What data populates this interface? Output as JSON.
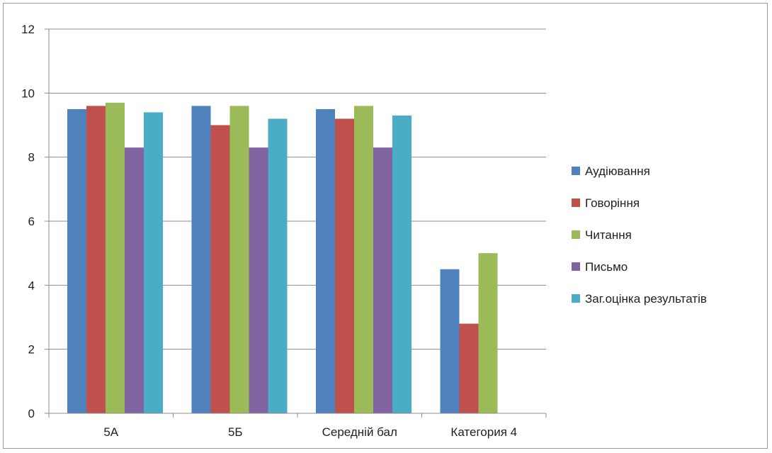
{
  "chart_data": {
    "type": "bar",
    "categories": [
      "5А",
      "5Б",
      "Середній бал",
      "Категория 4"
    ],
    "series": [
      {
        "name": "Аудіювання",
        "color": "#4F81BD",
        "values": [
          9.5,
          9.6,
          9.5,
          4.5
        ]
      },
      {
        "name": "Говоріння",
        "color": "#C0504D",
        "values": [
          9.6,
          9.0,
          9.2,
          2.8
        ]
      },
      {
        "name": "Читання",
        "color": "#9BBB59",
        "values": [
          9.7,
          9.6,
          9.6,
          5.0
        ]
      },
      {
        "name": "Письмо",
        "color": "#8064A2",
        "values": [
          8.3,
          8.3,
          8.3,
          null
        ]
      },
      {
        "name": "Заг.оцінка результатів",
        "color": "#4BACC6",
        "values": [
          9.4,
          9.2,
          9.3,
          null
        ]
      }
    ],
    "ylim": [
      0,
      12
    ],
    "yticks": [
      0,
      2,
      4,
      6,
      8,
      10,
      12
    ],
    "grid": true,
    "legend_position": "right"
  }
}
